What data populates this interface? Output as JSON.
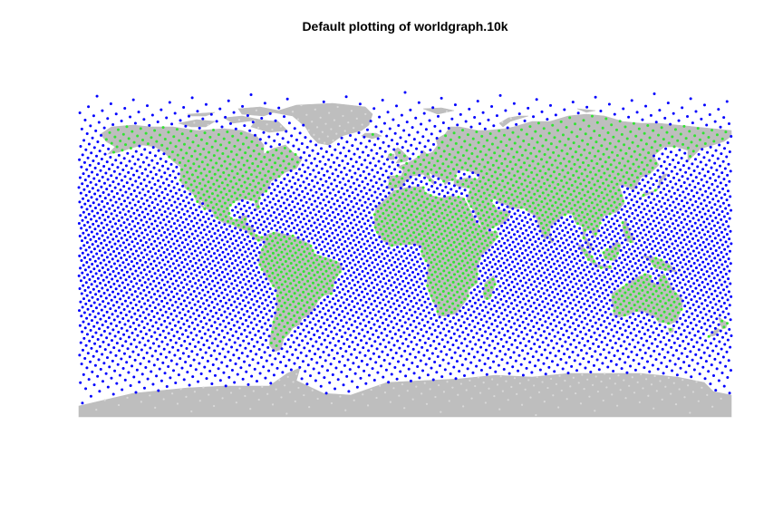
{
  "title": "Default plotting of worldgraph.10k",
  "colors": {
    "background": "#ffffff",
    "land": "#bebebe",
    "ocean_nodes": "#0000ff",
    "land_nodes": "#33e233",
    "ice_nodes": "#d9d9d9"
  },
  "map": {
    "projection": "equirectangular",
    "lon_range": [
      -180,
      180
    ],
    "lat_range": [
      -90,
      90
    ],
    "node_count_label": "10k"
  }
}
